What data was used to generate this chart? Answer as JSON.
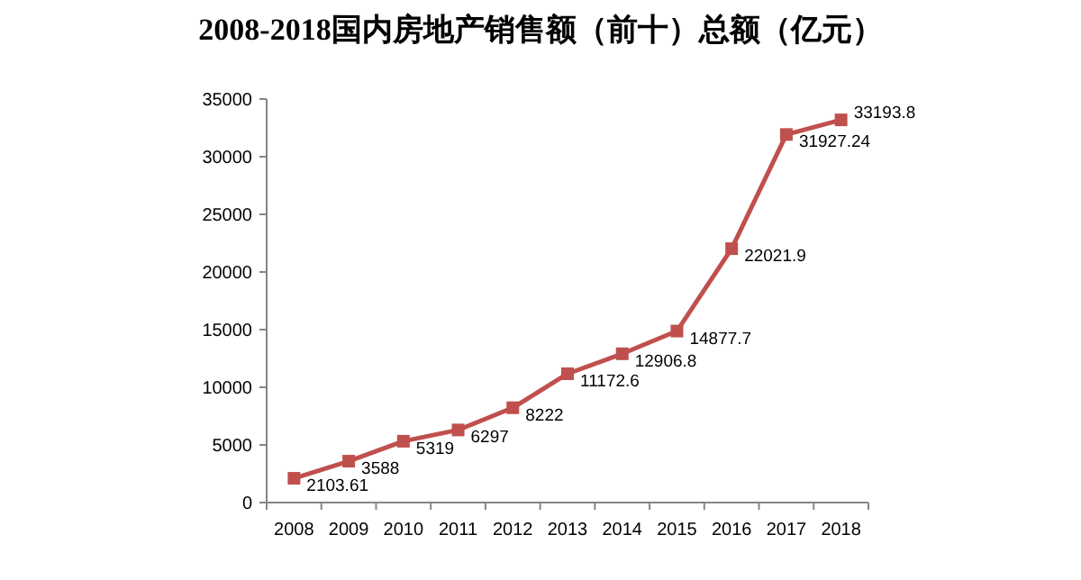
{
  "chart_data": {
    "type": "line",
    "title": "2008-2018国内房地产销售额（前十）总额（亿元）",
    "categories": [
      "2008",
      "2009",
      "2010",
      "2011",
      "2012",
      "2013",
      "2014",
      "2015",
      "2016",
      "2017",
      "2018"
    ],
    "values": [
      2103.61,
      3588,
      5319,
      6297,
      8222,
      11172.6,
      12906.8,
      14877.7,
      22021.9,
      31927.24,
      33193.8
    ],
    "color": "#c0504d",
    "marker": "square",
    "line_style": "solid",
    "data_labels": true,
    "grid": false,
    "ylim": [
      0,
      35000
    ],
    "yticks": [
      0,
      5000,
      10000,
      15000,
      20000,
      25000,
      30000,
      35000
    ]
  }
}
